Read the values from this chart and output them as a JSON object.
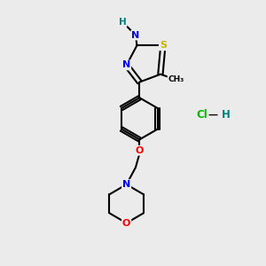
{
  "background_color": "#ebebeb",
  "bond_color": "#000000",
  "atom_colors": {
    "S": "#c8b400",
    "N": "#0000ff",
    "O": "#ff0000",
    "C": "#000000",
    "H": "#008080",
    "Cl": "#00bb00"
  }
}
